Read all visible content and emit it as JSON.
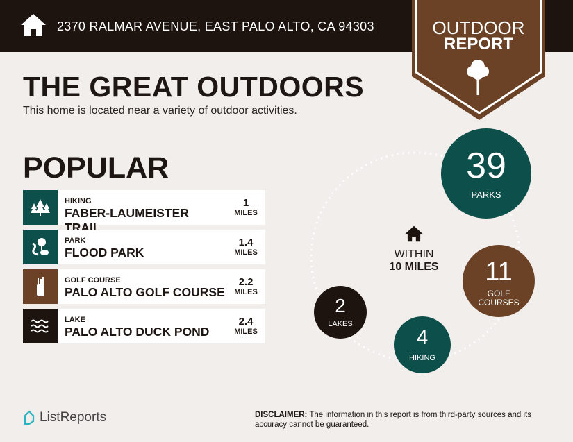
{
  "header": {
    "address": "2370 RALMAR AVENUE, EAST PALO ALTO, CA 94303",
    "badge_line1": "OUTDOOR",
    "badge_line2": "REPORT"
  },
  "title": "THE GREAT OUTDOORS",
  "subtitle": "This home is located near a variety of outdoor activities.",
  "popular": {
    "heading": "POPULAR",
    "items": [
      {
        "category": "HIKING",
        "name": "FABER-LAUMEISTER TRAIL",
        "distance": "1",
        "unit": "MILES",
        "icon": "trees-icon",
        "color": "#0d4f4a"
      },
      {
        "category": "PARK",
        "name": "FLOOD PARK",
        "distance": "1.4",
        "unit": "MILES",
        "icon": "park-icon",
        "color": "#0d4f4a"
      },
      {
        "category": "GOLF COURSE",
        "name": "PALO ALTO GOLF COURSE",
        "distance": "2.2",
        "unit": "MILES",
        "icon": "golf-bag-icon",
        "color": "#6b4226"
      },
      {
        "category": "LAKE",
        "name": "PALO ALTO DUCK POND",
        "distance": "2.4",
        "unit": "MILES",
        "icon": "waves-icon",
        "color": "#1d1410"
      }
    ]
  },
  "summary": {
    "within_line1": "WITHIN",
    "within_line2": "10 MILES",
    "parks": {
      "count": "39",
      "label": "PARKS"
    },
    "golf": {
      "count": "11",
      "label_1": "GOLF",
      "label_2": "COURSES"
    },
    "hiking": {
      "count": "4",
      "label": "HIKING"
    },
    "lakes": {
      "count": "2",
      "label": "LAKES"
    }
  },
  "footer": {
    "brand": "ListReports",
    "disclaimer_label": "DISCLAIMER:",
    "disclaimer": " The information in this report is from third-party sources and its accuracy cannot be guaranteed."
  },
  "colors": {
    "teal": "#0d4f4a",
    "brown": "#6b4226",
    "dark": "#1d1410",
    "background": "#f1eeeb"
  }
}
